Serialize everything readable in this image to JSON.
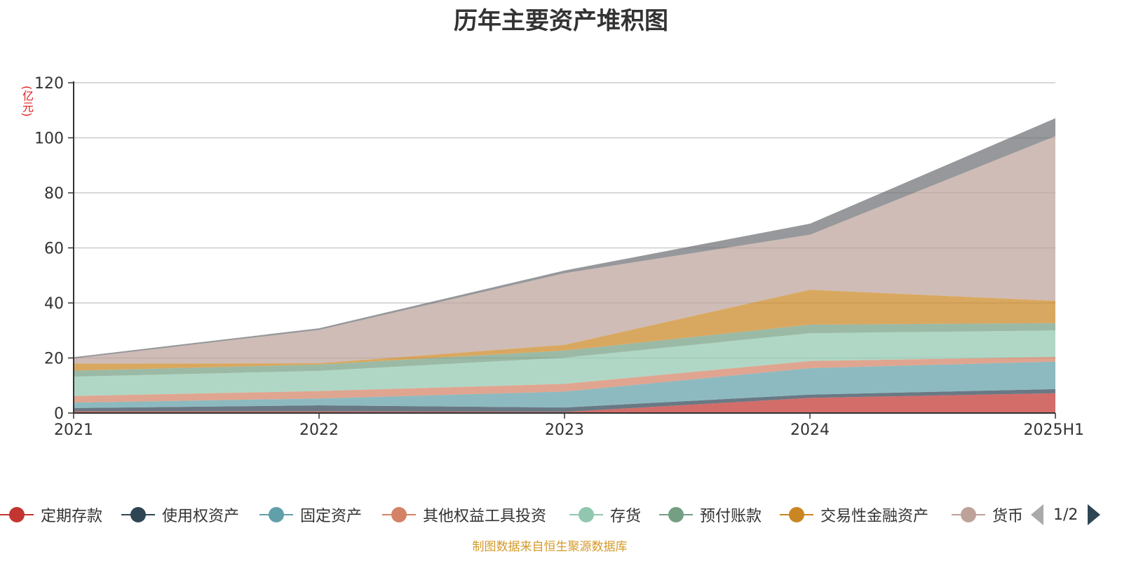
{
  "chart_data": {
    "type": "area",
    "stacked": true,
    "title": "历年主要资产堆积图",
    "unit_label": "(亿元)",
    "categories": [
      "2021",
      "2022",
      "2023",
      "2024",
      "2025H1"
    ],
    "ylim": [
      0,
      120
    ],
    "yticks": [
      0,
      20,
      40,
      60,
      80,
      100,
      120
    ],
    "grid": true,
    "legend_position": "bottom",
    "series": [
      {
        "name": "定期存款",
        "color": "#c23531",
        "values": [
          0.6,
          0.6,
          0.4,
          5.5,
          7.2
        ]
      },
      {
        "name": "使用权资产",
        "color": "#2f4554",
        "values": [
          1.2,
          2.2,
          1.6,
          1.2,
          1.5
        ]
      },
      {
        "name": "固定资产",
        "color": "#61a0a8",
        "values": [
          2.0,
          2.5,
          5.8,
          9.6,
          10.0
        ]
      },
      {
        "name": "其他权益工具投资",
        "color": "#d48265",
        "values": [
          2.4,
          2.7,
          2.8,
          2.6,
          1.7
        ]
      },
      {
        "name": "存货",
        "color": "#91c7ae",
        "values": [
          7.0,
          7.3,
          9.5,
          10.1,
          9.6
        ]
      },
      {
        "name": "预付账款",
        "color": "#749f83",
        "values": [
          2.2,
          2.3,
          2.6,
          3.1,
          2.7
        ]
      },
      {
        "name": "交易性金融资产",
        "color": "#ca8622",
        "values": [
          2.6,
          0.5,
          2.1,
          12.7,
          8.1
        ]
      },
      {
        "name": "货币资金",
        "color": "#bda29a",
        "values": [
          1.8,
          12.1,
          26.0,
          20.0,
          59.8
        ]
      },
      {
        "name": "",
        "color": "#6e7074",
        "values": [
          0.5,
          0.6,
          1.0,
          4.0,
          6.5
        ]
      }
    ]
  },
  "legend": {
    "items": [
      "定期存款",
      "使用权资产",
      "固定资产",
      "其他权益工具投资",
      "存货",
      "预付账款",
      "交易性金融资产",
      "货币"
    ],
    "page_text": "1/2"
  },
  "footer": "制图数据来自恒生聚源数据库"
}
